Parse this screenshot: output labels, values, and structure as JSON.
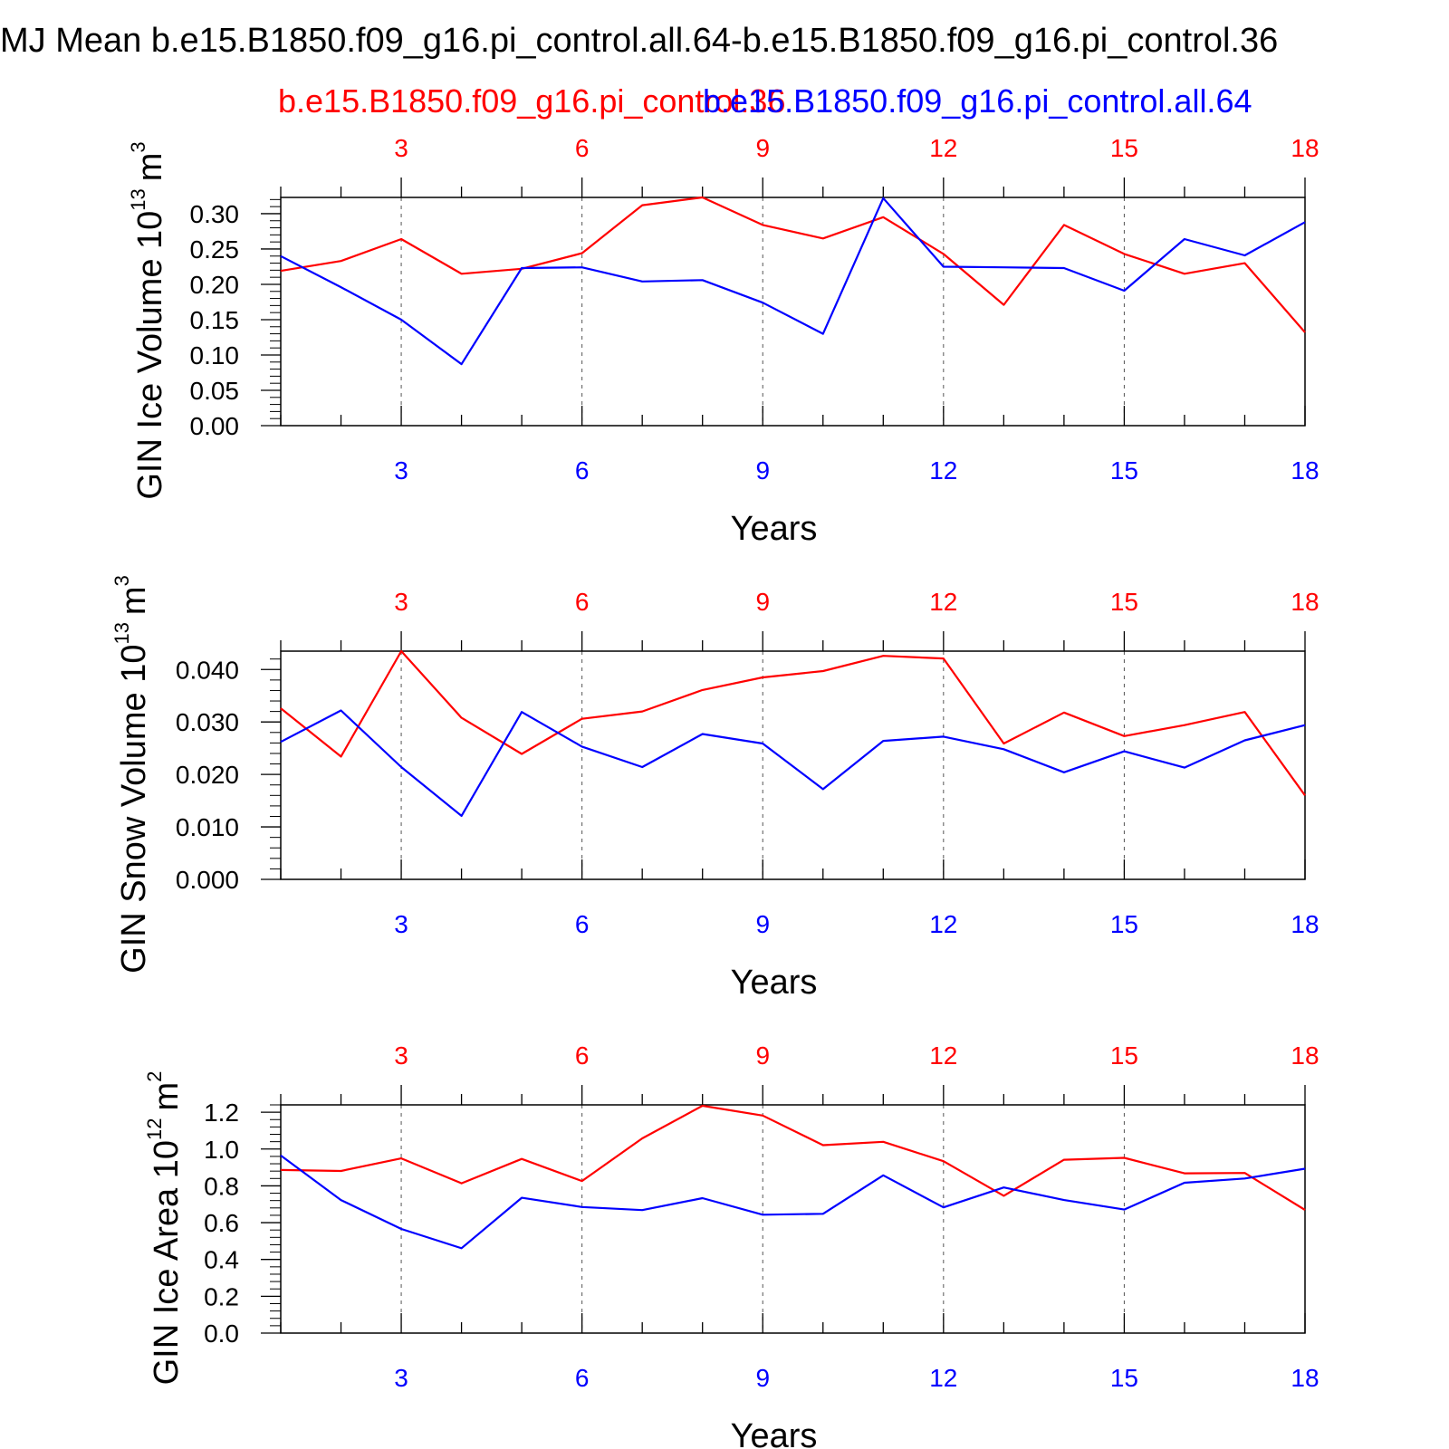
{
  "figure": {
    "title": "MJ Mean b.e15.B1850.f09_g16.pi_control.all.64-b.e15.B1850.f09_g16.pi_control.36",
    "legend_red": "b.e15.B1850.f09_g16.pi_control.36",
    "legend_blue": "b.e15.B1850.f09_g16.pi_control.all.64",
    "colors": {
      "red": "#ff0000",
      "blue": "#0000ff"
    }
  },
  "chart_data": [
    {
      "type": "line",
      "ylabel": "GIN Ice Volume 10",
      "ylabel_exp": "13",
      "ylabel_unit": "m",
      "ylabel_unit_exp": "3",
      "xlabel": "Years",
      "xlim": [
        1,
        18
      ],
      "ylim": [
        0,
        0.323
      ],
      "x_ticks": [
        "3",
        "6",
        "9",
        "12",
        "15",
        "18"
      ],
      "y_ticks": [
        "0.00",
        "0.05",
        "0.10",
        "0.15",
        "0.20",
        "0.25",
        "0.30"
      ],
      "grid": "vertical dashed at major x ticks",
      "x": [
        1,
        2,
        3,
        4,
        5,
        6,
        7,
        8,
        9,
        10,
        11,
        12,
        13,
        14,
        15,
        16,
        17,
        18
      ],
      "series": [
        {
          "color": "#ff0000",
          "values": [
            0.219,
            0.233,
            0.264,
            0.215,
            0.222,
            0.244,
            0.312,
            0.323,
            0.284,
            0.265,
            0.295,
            0.243,
            0.171,
            0.284,
            0.243,
            0.215,
            0.23,
            0.132
          ]
        },
        {
          "color": "#0000ff",
          "values": [
            0.24,
            0.196,
            0.15,
            0.087,
            0.223,
            0.224,
            0.204,
            0.206,
            0.174,
            0.13,
            0.322,
            0.225,
            0.224,
            0.223,
            0.191,
            0.264,
            0.241,
            0.288
          ]
        }
      ]
    },
    {
      "type": "line",
      "ylabel": "GIN Snow Volume 10",
      "ylabel_exp": "13",
      "ylabel_unit": "m",
      "ylabel_unit_exp": "3",
      "xlabel": "Years",
      "xlim": [
        1,
        18
      ],
      "ylim": [
        0,
        0.0435
      ],
      "x_ticks": [
        "3",
        "6",
        "9",
        "12",
        "15",
        "18"
      ],
      "y_ticks": [
        "0.000",
        "0.010",
        "0.020",
        "0.030",
        "0.040"
      ],
      "grid": "vertical dashed at major x ticks",
      "x": [
        1,
        2,
        3,
        4,
        5,
        6,
        7,
        8,
        9,
        10,
        11,
        12,
        13,
        14,
        15,
        16,
        17,
        18
      ],
      "series": [
        {
          "color": "#ff0000",
          "values": [
            0.0326,
            0.0234,
            0.0435,
            0.0308,
            0.0239,
            0.0306,
            0.032,
            0.0361,
            0.0385,
            0.0397,
            0.0426,
            0.0421,
            0.0259,
            0.0318,
            0.0273,
            0.0294,
            0.0319,
            0.016
          ]
        },
        {
          "color": "#0000ff",
          "values": [
            0.0262,
            0.0322,
            0.0214,
            0.0121,
            0.0319,
            0.0253,
            0.0214,
            0.0277,
            0.0259,
            0.0172,
            0.0264,
            0.0272,
            0.0248,
            0.0204,
            0.0244,
            0.0213,
            0.0265,
            0.0294
          ]
        }
      ]
    },
    {
      "type": "line",
      "ylabel": "GIN Ice Area 10",
      "ylabel_exp": "12",
      "ylabel_unit": "m",
      "ylabel_unit_exp": "2",
      "xlabel": "Years",
      "xlim": [
        1,
        18
      ],
      "ylim": [
        0,
        1.24
      ],
      "x_ticks": [
        "3",
        "6",
        "9",
        "12",
        "15",
        "18"
      ],
      "y_ticks": [
        "0.0",
        "0.2",
        "0.4",
        "0.6",
        "0.8",
        "1.0",
        "1.2"
      ],
      "grid": "vertical dashed at major x ticks",
      "x": [
        1,
        2,
        3,
        4,
        5,
        6,
        7,
        8,
        9,
        10,
        11,
        12,
        13,
        14,
        15,
        16,
        17,
        18
      ],
      "series": [
        {
          "color": "#ff0000",
          "values": [
            0.886,
            0.881,
            0.949,
            0.814,
            0.946,
            0.826,
            1.058,
            1.235,
            1.182,
            1.021,
            1.039,
            0.934,
            0.746,
            0.942,
            0.952,
            0.868,
            0.87,
            0.669
          ]
        },
        {
          "color": "#0000ff",
          "values": [
            0.965,
            0.723,
            0.566,
            0.461,
            0.735,
            0.685,
            0.668,
            0.733,
            0.643,
            0.648,
            0.857,
            0.683,
            0.791,
            0.723,
            0.671,
            0.817,
            0.84,
            0.893
          ]
        }
      ]
    }
  ]
}
